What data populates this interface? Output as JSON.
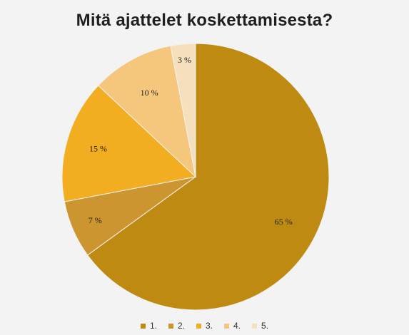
{
  "title": "Mitä ajattelet koskettamisesta?",
  "chart_data": {
    "type": "pie",
    "title": "Mitä ajattelet koskettamisesta?",
    "categories": [
      "1.",
      "2.",
      "3.",
      "4.",
      "5."
    ],
    "values": [
      65,
      7,
      15,
      10,
      3
    ],
    "labels": [
      "65 %",
      "7 %",
      "15 %",
      "10 %",
      "3 %"
    ],
    "colors": [
      "#bf8a12",
      "#cc9530",
      "#f2ae20",
      "#f4c77c",
      "#f6dfbd"
    ],
    "legend_position": "bottom"
  }
}
